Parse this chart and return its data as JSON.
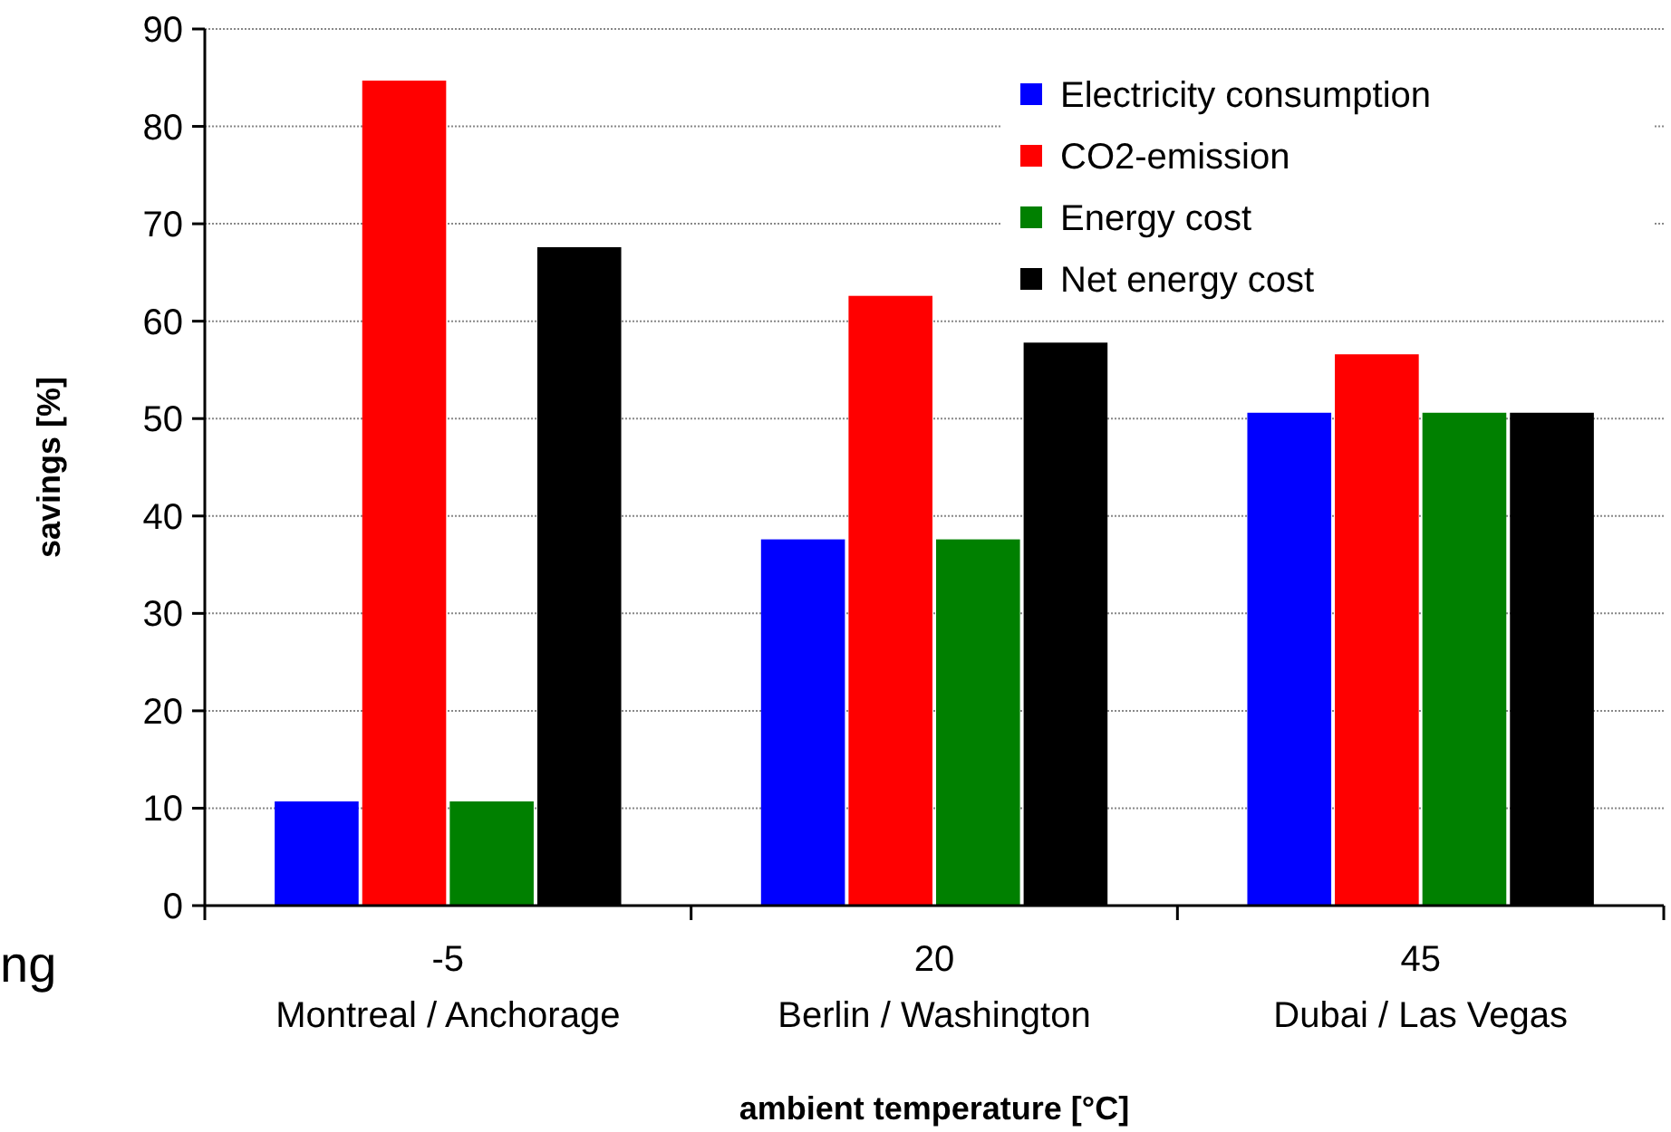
{
  "chart_data": {
    "type": "bar",
    "xlabel": "ambient temperature [°C]",
    "ylabel": "savings [%]",
    "categories": [
      "-5\nMontreal / Anchorage",
      "20\nBerlin / Washington",
      "45\nDubai / Las Vegas"
    ],
    "series": [
      {
        "name": "Electricity consumption",
        "color": "#0000ff",
        "values": [
          10.7,
          37.6,
          50.6
        ]
      },
      {
        "name": "CO2-emission",
        "color": "#ff0000",
        "values": [
          84.7,
          62.6,
          56.6
        ]
      },
      {
        "name": "Energy cost",
        "color": "#008000",
        "values": [
          10.7,
          37.6,
          50.6
        ]
      },
      {
        "name": "Net energy cost",
        "color": "#000000",
        "values": [
          67.6,
          57.8,
          50.6
        ]
      }
    ],
    "ylim": [
      0,
      90
    ],
    "yticks": [
      0,
      10,
      20,
      30,
      40,
      50,
      60,
      70,
      80,
      90
    ],
    "grid": "y",
    "legend": "top right",
    "annotations": [
      "ng"
    ]
  }
}
